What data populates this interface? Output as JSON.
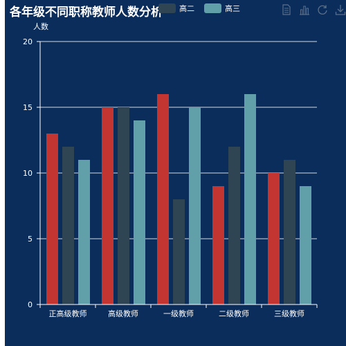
{
  "colors": {
    "background": "#0b2d5c",
    "series": [
      "#c23531",
      "#2f4554",
      "#61a0a8"
    ]
  },
  "legend": {
    "items": [
      {
        "label": "高二",
        "color": "#2f4554"
      },
      {
        "label": "高三",
        "color": "#61a0a8"
      }
    ]
  },
  "toolbox": {
    "icons": [
      "data-view-icon",
      "bar-chart-icon",
      "refresh-icon",
      "download-icon"
    ]
  },
  "chart_data": {
    "type": "bar",
    "title": "各年级不同职称教师人数分析",
    "ylabel": "人数",
    "xlabel": "",
    "categories": [
      "正高级教师",
      "高级教师",
      "一级教师",
      "二级教师",
      "三级教师"
    ],
    "series": [
      {
        "values": [
          13,
          15,
          16,
          9,
          10
        ]
      },
      {
        "name": "高二",
        "values": [
          12,
          15,
          8,
          12,
          11
        ]
      },
      {
        "name": "高三",
        "values": [
          11,
          14,
          15,
          16,
          9
        ]
      }
    ],
    "ylim": [
      0,
      20
    ],
    "yticks": [
      0,
      5,
      10,
      15,
      20
    ],
    "grid": true,
    "legend_position": "top"
  }
}
